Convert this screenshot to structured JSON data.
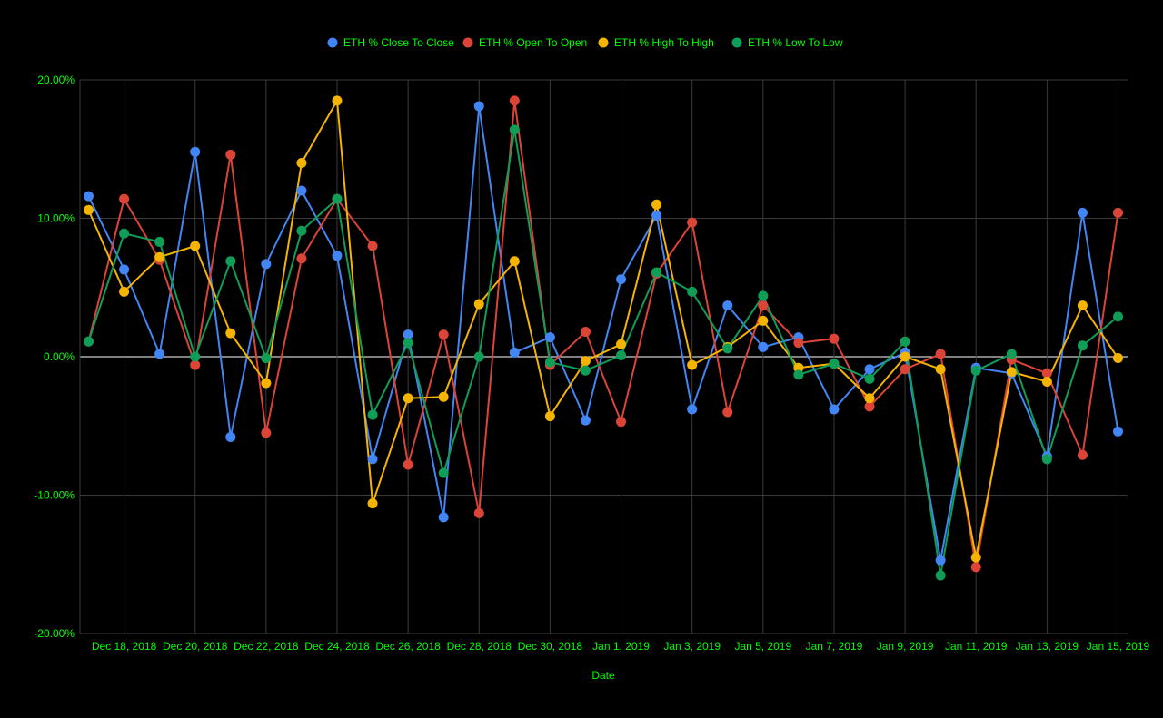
{
  "chart_data": {
    "type": "line",
    "title": "",
    "xlabel": "Date",
    "ylabel": "",
    "ylim": [
      -20,
      20
    ],
    "yticks": [
      -20,
      -10,
      0,
      10,
      20
    ],
    "ytick_labels": [
      "-20.00%",
      "-10.00%",
      "0.00%",
      "10.00%",
      "20.00%"
    ],
    "legend_position": "top-center",
    "grid": true,
    "x": [
      "Dec 17, 2018",
      "Dec 18, 2018",
      "Dec 19, 2018",
      "Dec 20, 2018",
      "Dec 21, 2018",
      "Dec 22, 2018",
      "Dec 23, 2018",
      "Dec 24, 2018",
      "Dec 25, 2018",
      "Dec 26, 2018",
      "Dec 27, 2018",
      "Dec 28, 2018",
      "Dec 29, 2018",
      "Dec 30, 2018",
      "Dec 31, 2018",
      "Jan 1, 2019",
      "Jan 2, 2019",
      "Jan 3, 2019",
      "Jan 4, 2019",
      "Jan 5, 2019",
      "Jan 6, 2019",
      "Jan 7, 2019",
      "Jan 8, 2019",
      "Jan 9, 2019",
      "Jan 10, 2019",
      "Jan 11, 2019",
      "Jan 12, 2019",
      "Jan 13, 2019",
      "Jan 14, 2019",
      "Jan 15, 2019"
    ],
    "x_tick_labels": [
      "Dec 18, 2018",
      "Dec 20, 2018",
      "Dec 22, 2018",
      "Dec 24, 2018",
      "Dec 26, 2018",
      "Dec 28, 2018",
      "Dec 30, 2018",
      "Jan 1, 2019",
      "Jan 3, 2019",
      "Jan 5, 2019",
      "Jan 7, 2019",
      "Jan 9, 2019",
      "Jan 11, 2019",
      "Jan 13, 2019",
      "Jan 15, 2019"
    ],
    "x_tick_indices": [
      1,
      3,
      5,
      7,
      9,
      11,
      13,
      15,
      17,
      19,
      21,
      23,
      25,
      27,
      29
    ],
    "series": [
      {
        "name": "ETH % Close To Close",
        "color": "#4285F4",
        "values": [
          11.6,
          6.3,
          0.2,
          14.8,
          -5.8,
          6.7,
          12.0,
          7.3,
          -7.4,
          1.6,
          -11.6,
          18.1,
          0.3,
          1.4,
          -4.6,
          5.6,
          10.2,
          -3.8,
          3.7,
          0.7,
          1.4,
          -3.8,
          -0.9,
          0.3,
          -14.7,
          -0.8,
          -1.2,
          -7.2,
          10.4,
          -5.4
        ]
      },
      {
        "name": "ETH % Open To Open",
        "color": "#DB4437",
        "values": [
          1.1,
          11.4,
          7.0,
          -0.6,
          14.6,
          -5.5,
          7.1,
          11.4,
          8.0,
          -7.8,
          1.6,
          -11.3,
          18.5,
          -0.6,
          1.8,
          -4.7,
          6.0,
          9.7,
          -4.0,
          3.7,
          1.0,
          1.3,
          -3.6,
          -0.9,
          0.2,
          -15.2,
          -0.2,
          -1.2,
          -7.1,
          10.4
        ]
      },
      {
        "name": "ETH % High To High",
        "color": "#F4B400",
        "values": [
          10.6,
          4.7,
          7.2,
          8.0,
          1.7,
          -1.9,
          14.0,
          18.5,
          -10.6,
          -3.0,
          -2.9,
          3.8,
          6.9,
          -4.3,
          -0.3,
          0.9,
          11.0,
          -0.6,
          0.7,
          2.6,
          -0.8,
          -0.5,
          -3.0,
          0.0,
          -0.9,
          -14.5,
          -1.1,
          -1.8,
          3.7,
          -0.1
        ]
      },
      {
        "name": "ETH % Low To Low",
        "color": "#0F9D58",
        "values": [
          1.1,
          8.9,
          8.3,
          0.0,
          6.9,
          -0.1,
          9.1,
          11.4,
          -4.2,
          1.0,
          -8.4,
          0.0,
          16.4,
          -0.4,
          -1.0,
          0.1,
          6.1,
          4.7,
          0.6,
          4.4,
          -1.3,
          -0.5,
          -1.6,
          1.1,
          -15.8,
          -1.0,
          0.2,
          -7.4,
          0.8,
          2.9
        ]
      }
    ]
  }
}
